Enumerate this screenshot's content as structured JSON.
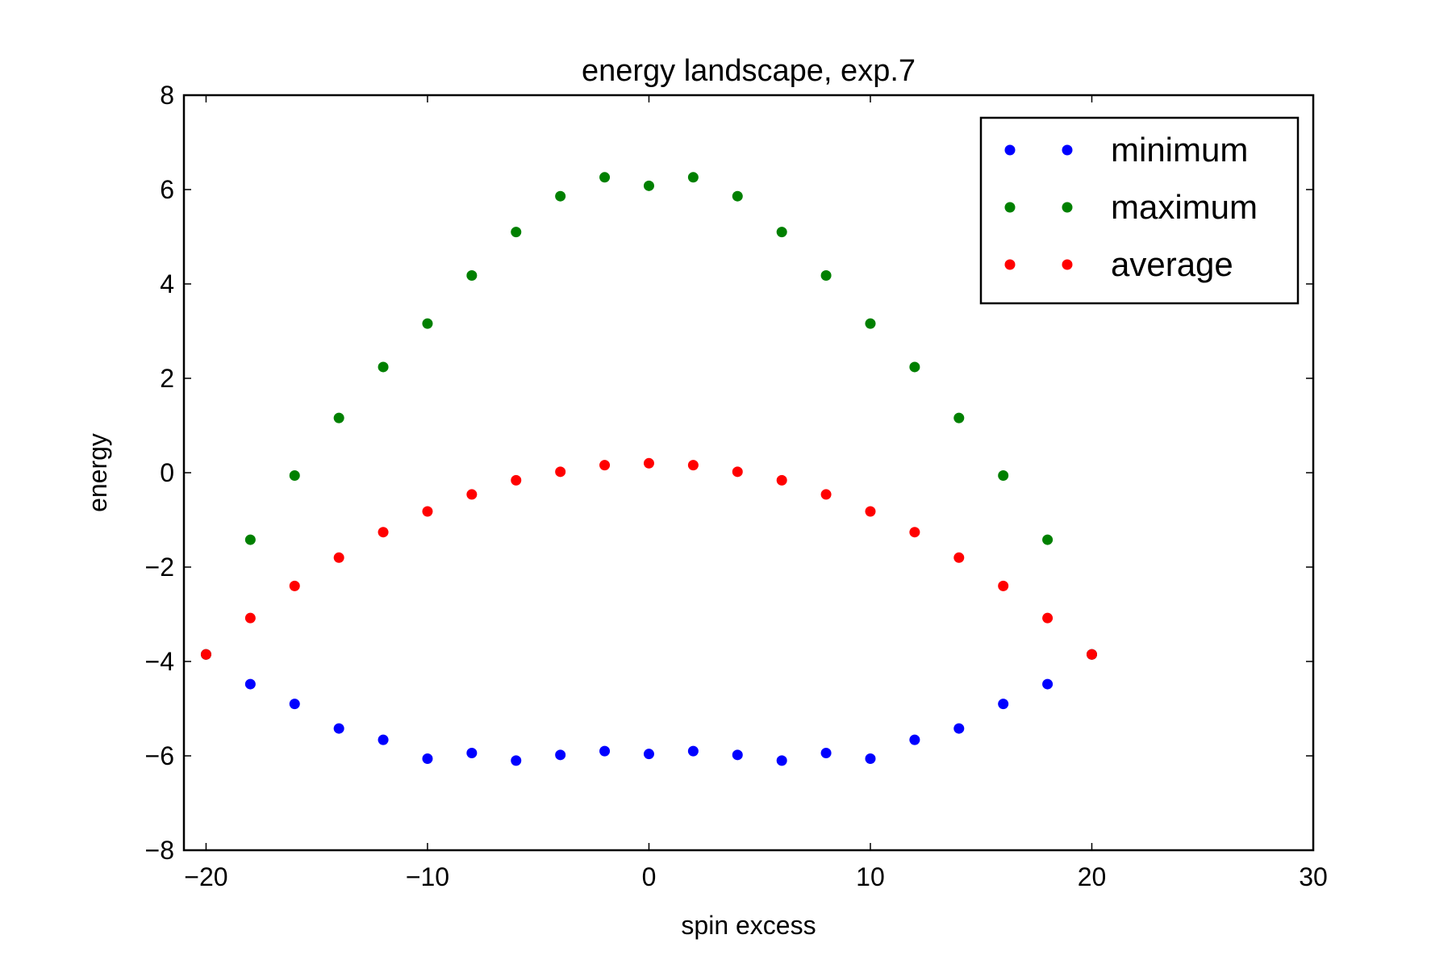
{
  "chart_data": {
    "type": "scatter",
    "title": "energy landscape, exp.7",
    "xlabel": "spin excess",
    "ylabel": "energy",
    "xlim": [
      -21,
      30
    ],
    "ylim": [
      -8,
      8
    ],
    "xticks": [
      -20,
      -10,
      0,
      10,
      20,
      30
    ],
    "yticks": [
      -8,
      -6,
      -4,
      -2,
      0,
      2,
      4,
      6,
      8
    ],
    "xtick_labels": [
      "−20",
      "−10",
      "0",
      "10",
      "20",
      "30"
    ],
    "ytick_labels": [
      "−8",
      "−6",
      "−4",
      "−2",
      "0",
      "2",
      "4",
      "6",
      "8"
    ],
    "grid": false,
    "legend_position": "top-right",
    "series": [
      {
        "name": "minimum",
        "color": "#0000ff",
        "x": [
          -20,
          -18,
          -16,
          -14,
          -12,
          -10,
          -8,
          -6,
          -4,
          -2,
          0,
          2,
          4,
          6,
          8,
          10,
          12,
          14,
          16,
          18,
          20
        ],
        "y": [
          -3.85,
          -4.48,
          -4.9,
          -5.42,
          -5.66,
          -6.06,
          -5.94,
          -6.1,
          -5.98,
          -5.9,
          -5.96,
          -5.9,
          -5.98,
          -6.1,
          -5.94,
          -6.06,
          -5.66,
          -5.42,
          -4.9,
          -4.48,
          -3.85
        ]
      },
      {
        "name": "maximum",
        "color": "#008000",
        "x": [
          -20,
          -18,
          -16,
          -14,
          -12,
          -10,
          -8,
          -6,
          -4,
          -2,
          0,
          2,
          4,
          6,
          8,
          10,
          12,
          14,
          16,
          18,
          20
        ],
        "y": [
          -3.85,
          -1.42,
          -0.06,
          1.16,
          2.24,
          3.16,
          4.18,
          5.1,
          5.86,
          6.26,
          6.08,
          6.26,
          5.86,
          5.1,
          4.18,
          3.16,
          2.24,
          1.16,
          -0.06,
          -1.42,
          -3.85
        ]
      },
      {
        "name": "average",
        "color": "#ff0000",
        "x": [
          -20,
          -18,
          -16,
          -14,
          -12,
          -10,
          -8,
          -6,
          -4,
          -2,
          0,
          2,
          4,
          6,
          8,
          10,
          12,
          14,
          16,
          18,
          20
        ],
        "y": [
          -3.85,
          -3.08,
          -2.4,
          -1.8,
          -1.26,
          -0.82,
          -0.46,
          -0.16,
          0.02,
          0.16,
          0.2,
          0.16,
          0.02,
          -0.16,
          -0.46,
          -0.82,
          -1.26,
          -1.8,
          -2.4,
          -3.08,
          -3.85
        ]
      }
    ]
  }
}
